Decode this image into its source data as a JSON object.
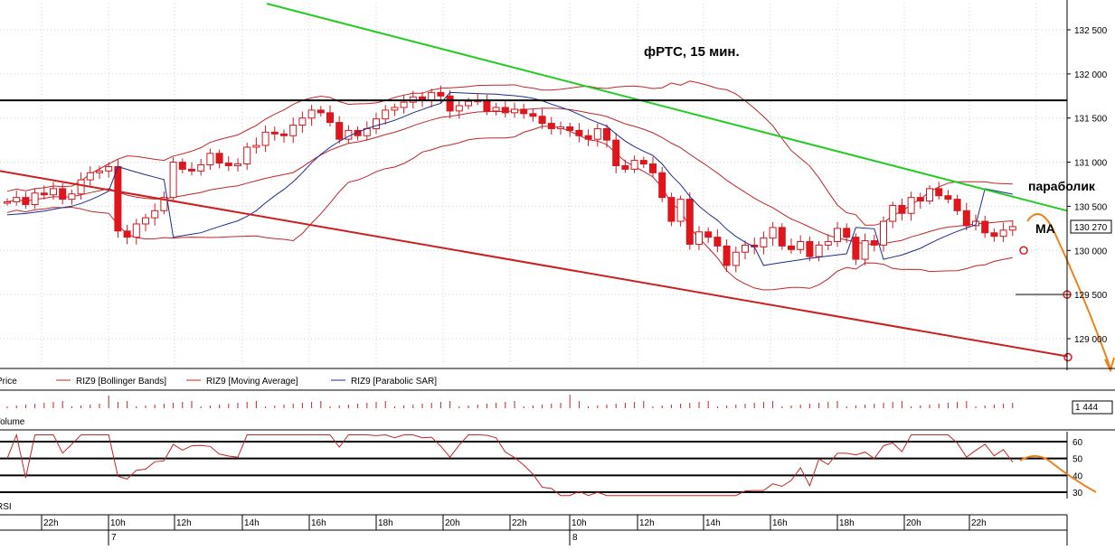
{
  "chart_data": [
    {
      "type": "candlestick",
      "title": "фРТС,  15 мин.",
      "instrument": "RIZ9",
      "price_axis_ticks": [
        "132 500",
        "132 000",
        "131 500",
        "131 000",
        "130 500",
        "130 000",
        "129 500",
        "129 000"
      ],
      "ylim": [
        128700,
        132800
      ],
      "last_price": "130 270",
      "legend": [
        "Price",
        "RIZ9 [Bollinger Bands]",
        "RIZ9 [Moving Average]",
        "RIZ9 [Parabolic SAR]"
      ],
      "annotations": [
        "параболик",
        "МА"
      ],
      "grid": true,
      "colors": {
        "up": "#ffffff",
        "down": "#e4141b",
        "candle_outline": "#d0191f",
        "bollinger": "#c0262a",
        "moving_average": "#c0262a",
        "psar": "#1c2d8c",
        "resistance": "#22cc22",
        "support": "#cc1f1f",
        "level": "#000000",
        "forecast": "#f07f17"
      },
      "candles_close": [
        130550,
        130600,
        130520,
        130650,
        130630,
        130700,
        130580,
        130640,
        130800,
        130880,
        130900,
        130950,
        130220,
        130150,
        130300,
        130370,
        130450,
        130600,
        131000,
        130920,
        130900,
        130970,
        131100,
        130990,
        130960,
        130980,
        131170,
        131190,
        131340,
        131320,
        131300,
        131420,
        131500,
        131590,
        131560,
        131450,
        131260,
        131360,
        131300,
        131380,
        131490,
        131590,
        131620,
        131680,
        131740,
        131700,
        131790,
        131750,
        131580,
        131640,
        131690,
        131700,
        131580,
        131620,
        131560,
        131600,
        131550,
        131520,
        131440,
        131380,
        131400,
        131360,
        131300,
        131260,
        131380,
        131250,
        130960,
        130920,
        131020,
        130980,
        130880,
        130600,
        130330,
        130580,
        130070,
        130210,
        130150,
        130050,
        129830,
        129980,
        130060,
        130040,
        130140,
        130260,
        130050,
        130010,
        130100,
        129930,
        130060,
        130100,
        130250,
        130150,
        129900,
        130110,
        130060,
        130330,
        130510,
        130420,
        130600,
        130560,
        130700,
        130620,
        130580,
        130450,
        130280,
        130330,
        130200,
        130160,
        130230,
        130270
      ],
      "volume_label": "Volume",
      "volume_last": "1 444",
      "rsi_label": "RSI",
      "rsi_ticks": [
        "60",
        "50",
        "40",
        "30"
      ],
      "rsi_levels": [
        60,
        50,
        40,
        30
      ],
      "time_labels": [
        "22h",
        "10h",
        "12h",
        "14h",
        "16h",
        "18h",
        "20h",
        "22h",
        "10h",
        "12h",
        "14h",
        "16h",
        "18h",
        "20h",
        "22h"
      ],
      "date_labels": [
        "7",
        "8"
      ]
    }
  ]
}
